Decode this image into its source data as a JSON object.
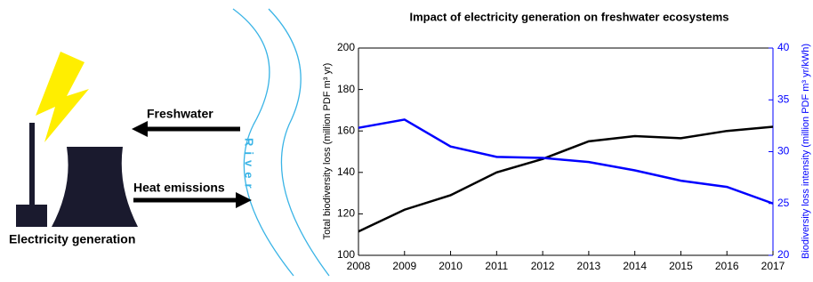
{
  "diagram": {
    "freshwater": "Freshwater",
    "heat": "Heat emissions",
    "plant": "Electricity generation",
    "river": "River"
  },
  "chart_data": {
    "type": "line",
    "title": "Impact of electricity generation on freshwater ecosystems",
    "y_label": "Total biodiversity loss (million PDF m³ yr)",
    "y2_label": "Biodiversity loss intensity (million PDF m³ yr/kWh)",
    "x": [
      2008,
      2009,
      2010,
      2011,
      2012,
      2013,
      2014,
      2015,
      2016,
      2017
    ],
    "xlim": [
      2008,
      2017
    ],
    "xticks": [
      2008,
      2009,
      2010,
      2011,
      2012,
      2013,
      2014,
      2015,
      2016,
      2017
    ],
    "ylim": [
      100,
      200
    ],
    "yticks": [
      100,
      120,
      140,
      160,
      180,
      200
    ],
    "y2lim": [
      20,
      40
    ],
    "y2ticks": [
      20,
      25,
      30,
      35,
      40
    ],
    "y2color": "#0000ff",
    "series": [
      {
        "color": "#000000",
        "values": [
          111.5,
          122,
          129,
          140,
          146.5,
          155,
          157.5,
          156.5,
          160,
          162
        ]
      },
      {
        "color": "#0000ff",
        "axis": "y2",
        "values": [
          32.3,
          33.1,
          30.5,
          29.5,
          29.4,
          29.0,
          28.2,
          27.2,
          26.6,
          25.0
        ]
      }
    ]
  }
}
